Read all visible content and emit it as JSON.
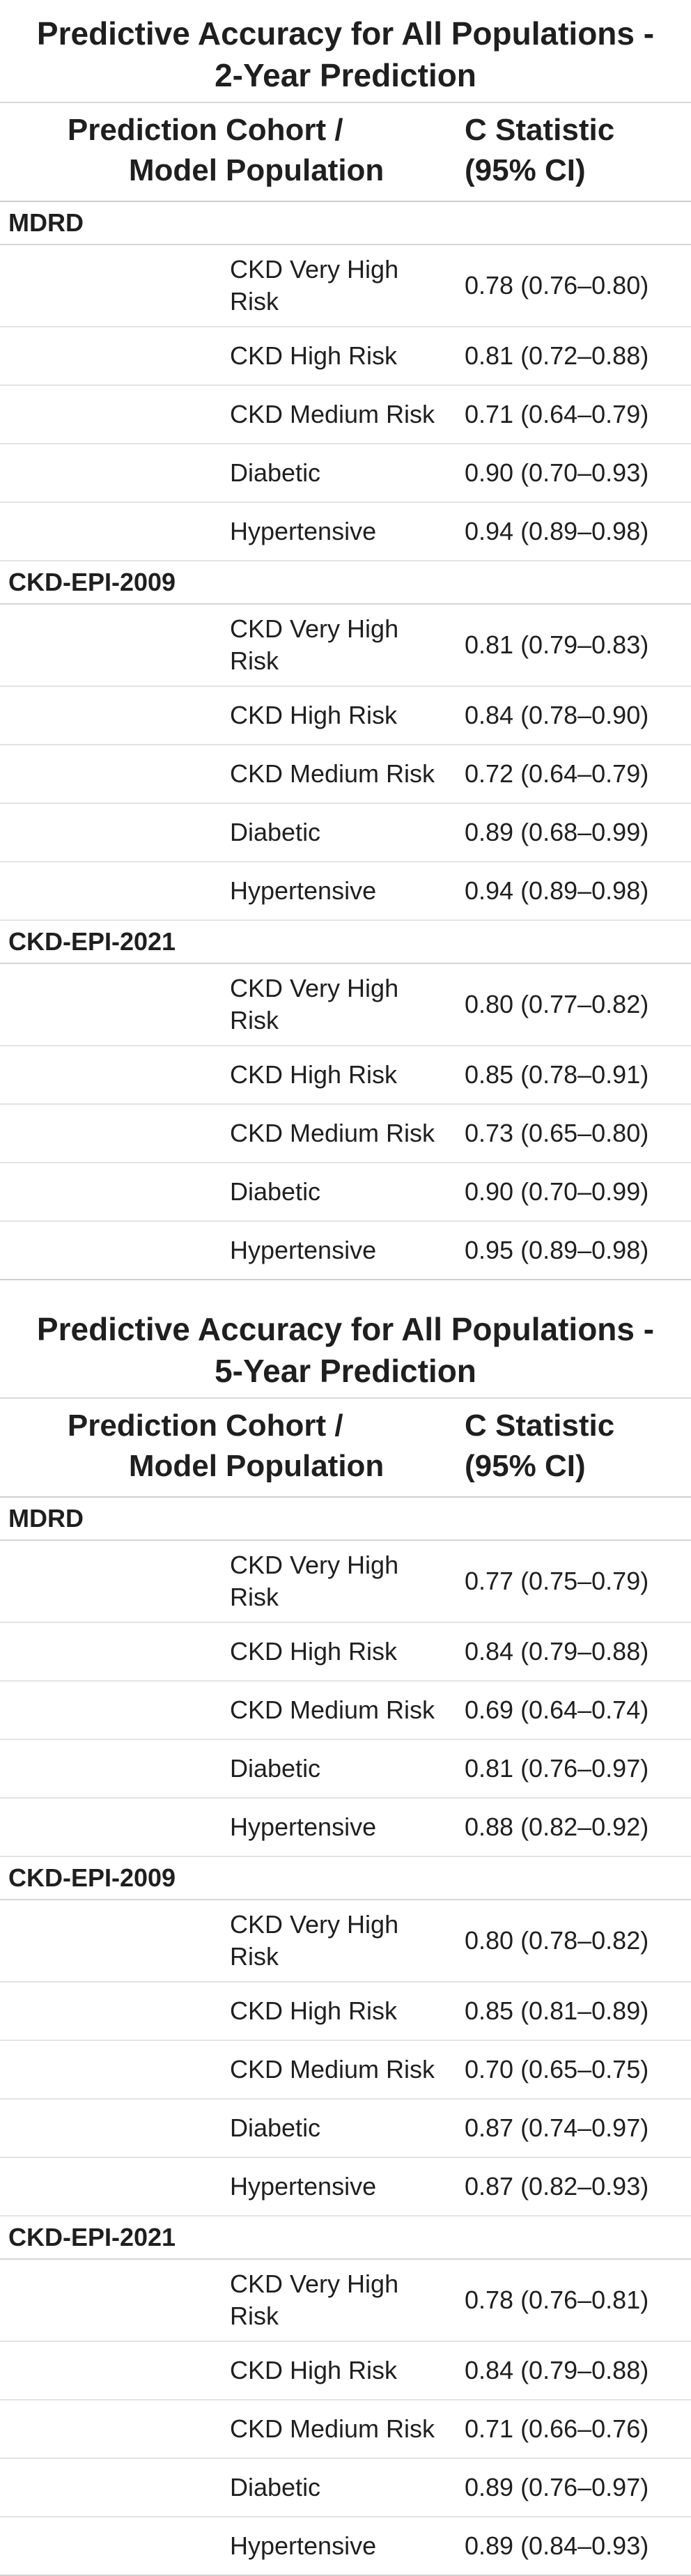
{
  "tables": [
    {
      "title_line1": "Predictive Accuracy for All Populations -",
      "title_line2": "2-Year Prediction",
      "header": {
        "model_line1": "Prediction",
        "model_line2": "Model",
        "pop_line1": "Cohort /",
        "pop_line2": "Population",
        "stat_line1": "C Statistic",
        "stat_line2": "(95% CI)"
      },
      "groups": [
        {
          "model": "MDRD",
          "rows": [
            {
              "population": "CKD Very High Risk",
              "c_statistic": "0.78 (0.76–0.80)"
            },
            {
              "population": "CKD High Risk",
              "c_statistic": "0.81 (0.72–0.88)"
            },
            {
              "population": "CKD Medium Risk",
              "c_statistic": "0.71 (0.64–0.79)"
            },
            {
              "population": "Diabetic",
              "c_statistic": "0.90 (0.70–0.93)"
            },
            {
              "population": "Hypertensive",
              "c_statistic": "0.94 (0.89–0.98)"
            }
          ]
        },
        {
          "model": "CKD-EPI-2009",
          "rows": [
            {
              "population": "CKD Very High Risk",
              "c_statistic": "0.81 (0.79–0.83)"
            },
            {
              "population": "CKD High Risk",
              "c_statistic": "0.84 (0.78–0.90)"
            },
            {
              "population": "CKD Medium Risk",
              "c_statistic": "0.72 (0.64–0.79)"
            },
            {
              "population": "Diabetic",
              "c_statistic": "0.89 (0.68–0.99)"
            },
            {
              "population": "Hypertensive",
              "c_statistic": "0.94 (0.89–0.98)"
            }
          ]
        },
        {
          "model": "CKD-EPI-2021",
          "rows": [
            {
              "population": "CKD Very High Risk",
              "c_statistic": "0.80 (0.77–0.82)"
            },
            {
              "population": "CKD High Risk",
              "c_statistic": "0.85 (0.78–0.91)"
            },
            {
              "population": "CKD Medium Risk",
              "c_statistic": "0.73 (0.65–0.80)"
            },
            {
              "population": "Diabetic",
              "c_statistic": "0.90 (0.70–0.99)"
            },
            {
              "population": "Hypertensive",
              "c_statistic": "0.95 (0.89–0.98)"
            }
          ]
        }
      ]
    },
    {
      "title_line1": "Predictive Accuracy for All Populations -",
      "title_line2": "5-Year Prediction",
      "header": {
        "model_line1": "Prediction",
        "model_line2": "Model",
        "pop_line1": "Cohort /",
        "pop_line2": "Population",
        "stat_line1": "C Statistic",
        "stat_line2": "(95% CI)"
      },
      "groups": [
        {
          "model": "MDRD",
          "rows": [
            {
              "population": "CKD Very High Risk",
              "c_statistic": "0.77 (0.75–0.79)"
            },
            {
              "population": "CKD High Risk",
              "c_statistic": "0.84 (0.79–0.88)"
            },
            {
              "population": "CKD Medium Risk",
              "c_statistic": "0.69 (0.64–0.74)"
            },
            {
              "population": "Diabetic",
              "c_statistic": "0.81 (0.76–0.97)"
            },
            {
              "population": "Hypertensive",
              "c_statistic": "0.88 (0.82–0.92)"
            }
          ]
        },
        {
          "model": "CKD-EPI-2009",
          "rows": [
            {
              "population": "CKD Very High Risk",
              "c_statistic": "0.80 (0.78–0.82)"
            },
            {
              "population": "CKD High Risk",
              "c_statistic": "0.85 (0.81–0.89)"
            },
            {
              "population": "CKD Medium Risk",
              "c_statistic": "0.70 (0.65–0.75)"
            },
            {
              "population": "Diabetic",
              "c_statistic": "0.87 (0.74–0.97)"
            },
            {
              "population": "Hypertensive",
              "c_statistic": "0.87 (0.82–0.93)"
            }
          ]
        },
        {
          "model": "CKD-EPI-2021",
          "rows": [
            {
              "population": "CKD Very High Risk",
              "c_statistic": "0.78 (0.76–0.81)"
            },
            {
              "population": "CKD High Risk",
              "c_statistic": "0.84 (0.79–0.88)"
            },
            {
              "population": "CKD Medium Risk",
              "c_statistic": "0.71 (0.66–0.76)"
            },
            {
              "population": "Diabetic",
              "c_statistic": "0.89 (0.76–0.97)"
            },
            {
              "population": "Hypertensive",
              "c_statistic": "0.89 (0.84–0.93)"
            }
          ]
        }
      ]
    }
  ]
}
